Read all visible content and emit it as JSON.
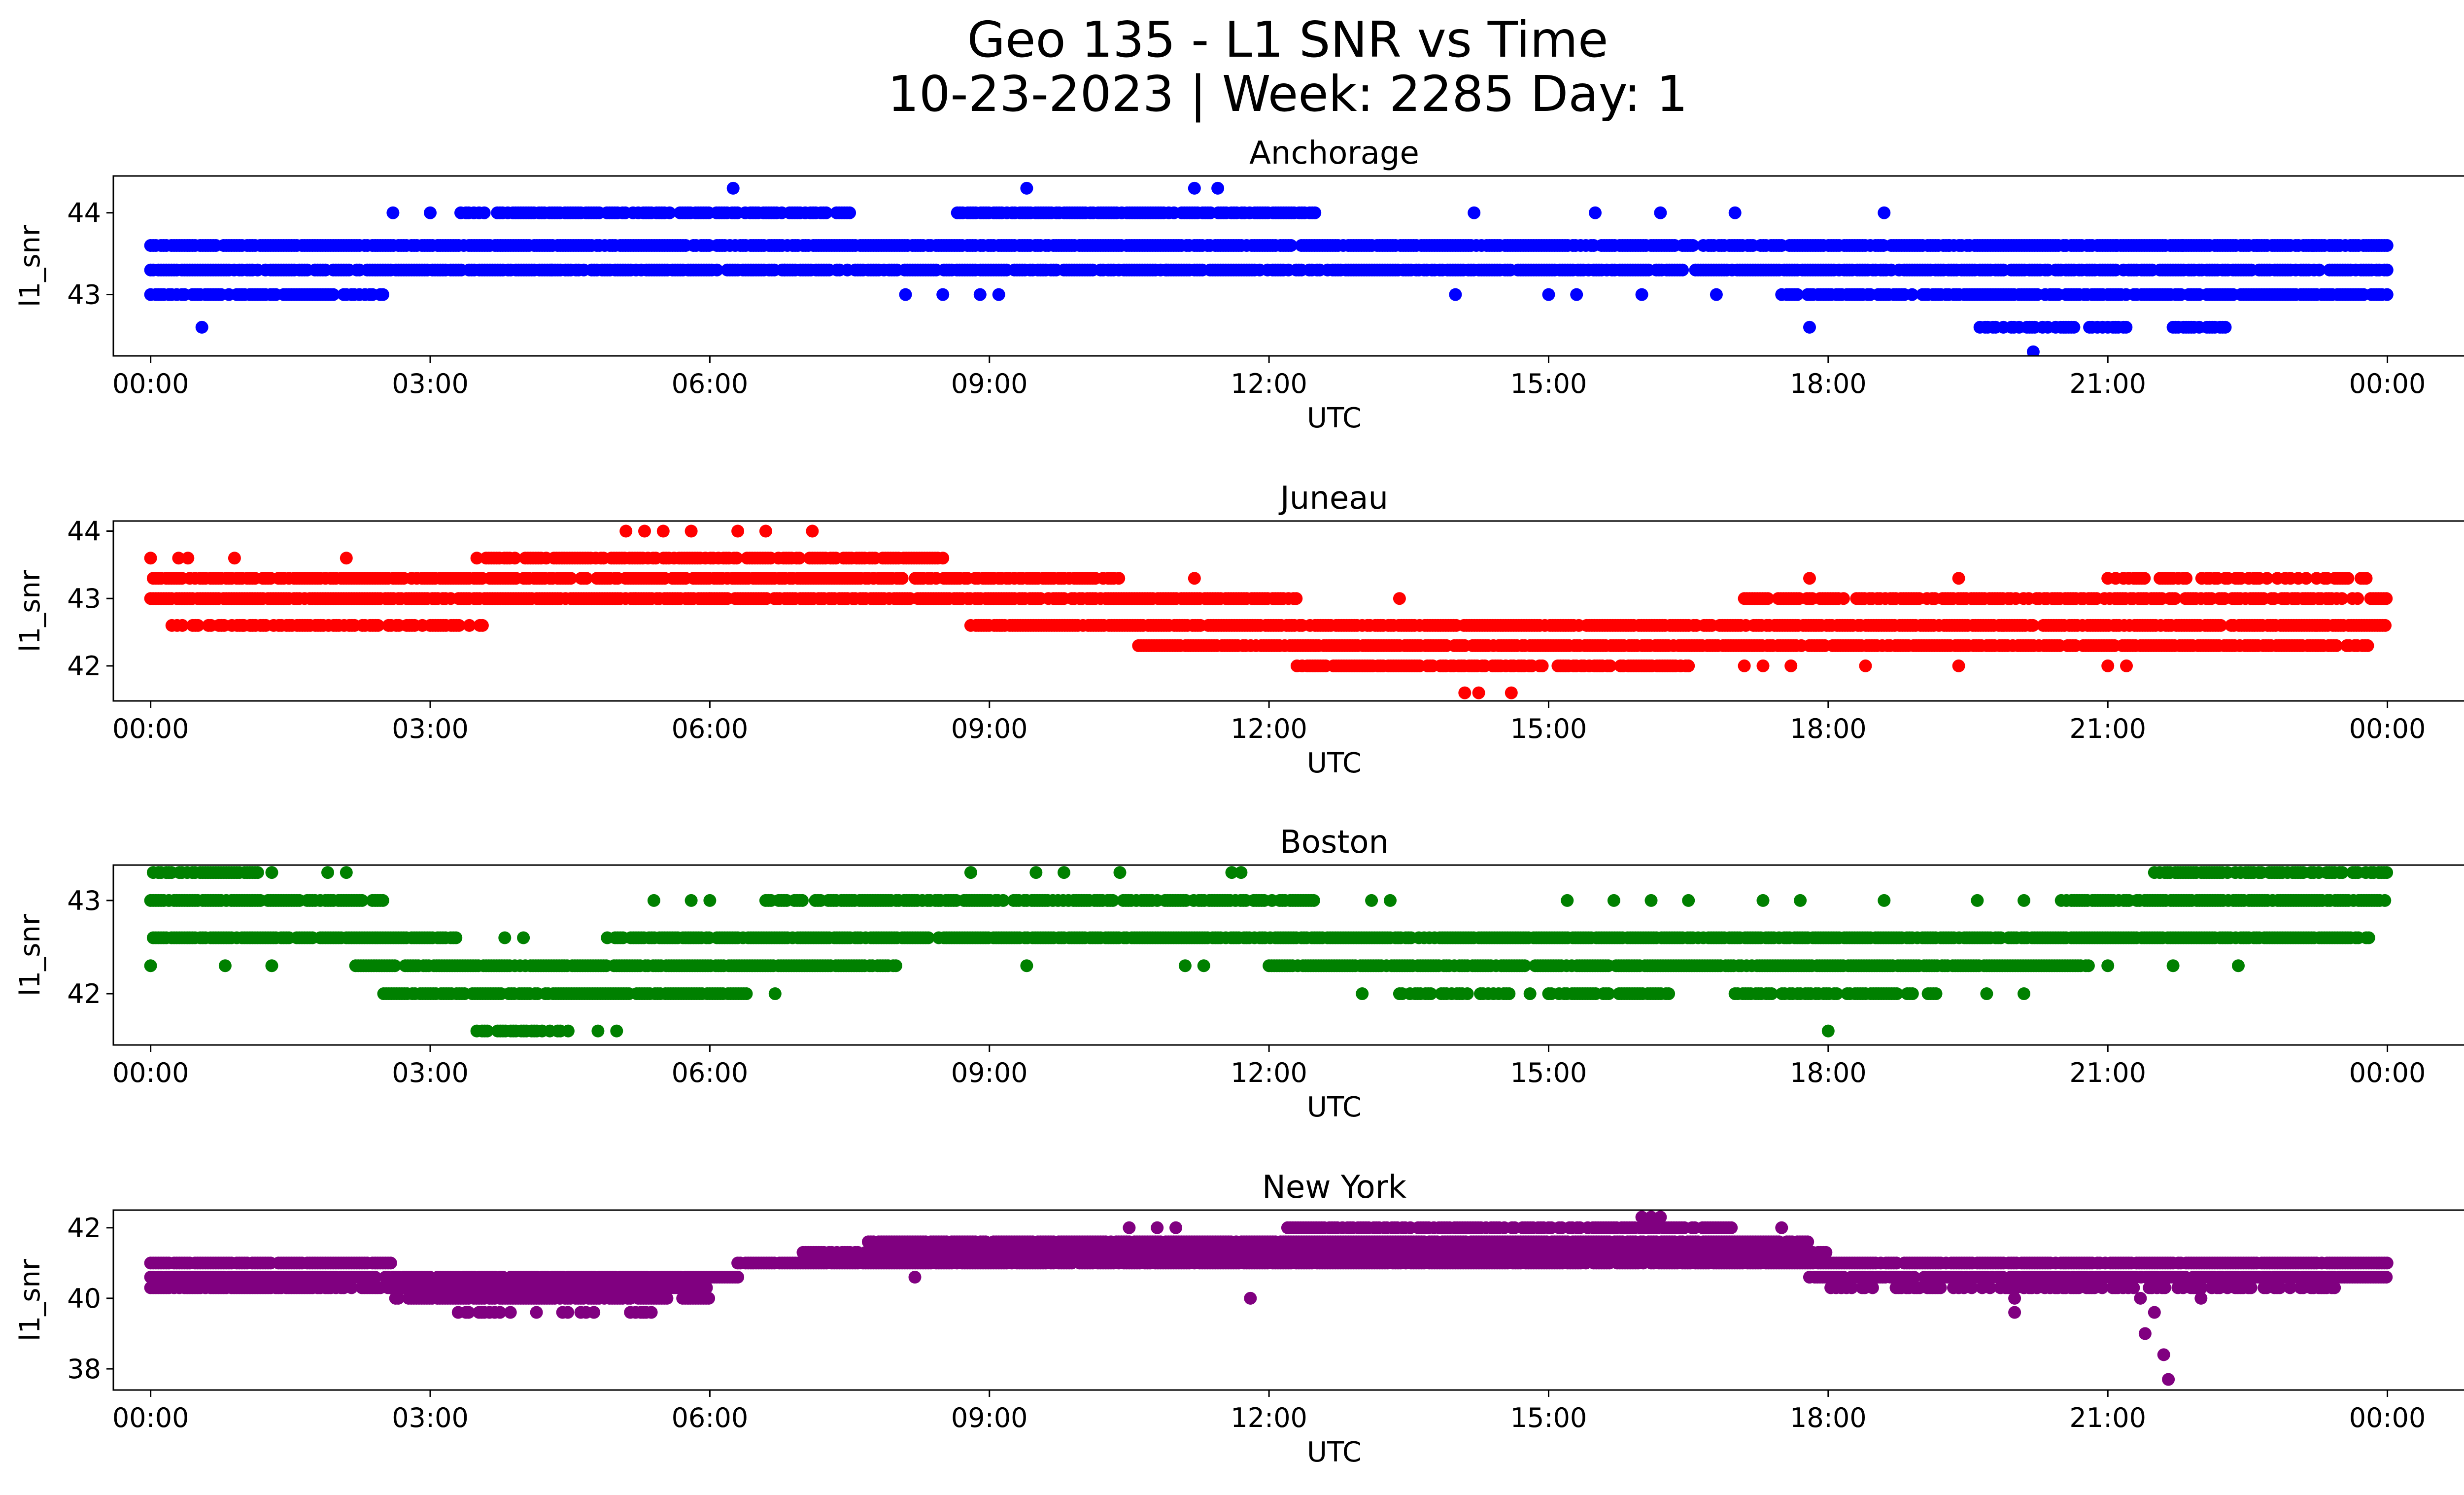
{
  "figure": {
    "title_line1": "Geo 135 - L1 SNR vs Time",
    "title_line2": "10-23-2023 | Week: 2285 Day: 1"
  },
  "chart_data": [
    {
      "type": "scatter",
      "title": "Anchorage",
      "xlabel": "UTC",
      "ylabel": "l1_snr",
      "color": "#0000ff",
      "xlim": [
        -0.4,
        25.8
      ],
      "ylim": [
        42.25,
        44.45
      ],
      "xticks": [
        "00:00",
        "03:00",
        "06:00",
        "09:00",
        "12:00",
        "15:00",
        "18:00",
        "21:00",
        "00:00"
      ],
      "xtick_values": [
        0,
        3,
        6,
        9,
        12,
        15,
        18,
        21,
        24
      ],
      "yticks": [
        43,
        44
      ],
      "bands": [
        {
          "y": 43.6,
          "from": 0.0,
          "to": 24.0,
          "density": 0.85
        },
        {
          "y": 43.3,
          "from": 0.0,
          "to": 24.0,
          "density": 0.8
        },
        {
          "y": 43.0,
          "from": 0.0,
          "to": 2.5,
          "density": 0.7
        },
        {
          "y": 43.0,
          "from": 17.5,
          "to": 24.0,
          "density": 0.8
        },
        {
          "y": 44.0,
          "from": 3.3,
          "to": 7.5,
          "density": 0.75
        },
        {
          "y": 44.0,
          "from": 8.6,
          "to": 12.5,
          "density": 0.8
        },
        {
          "y": 42.6,
          "from": 19.6,
          "to": 21.2,
          "density": 0.7
        },
        {
          "y": 42.6,
          "from": 21.7,
          "to": 22.3,
          "density": 0.7
        }
      ],
      "points": [
        [
          0.55,
          42.6
        ],
        [
          20.2,
          42.3
        ],
        [
          6.25,
          44.3
        ],
        [
          9.4,
          44.3
        ],
        [
          11.2,
          44.3
        ],
        [
          11.45,
          44.3
        ],
        [
          2.6,
          44.0
        ],
        [
          3.0,
          44.0
        ],
        [
          14.2,
          44.0
        ],
        [
          15.5,
          44.0
        ],
        [
          16.2,
          44.0
        ],
        [
          18.6,
          44.0
        ],
        [
          17.0,
          44.0
        ],
        [
          8.1,
          43.0
        ],
        [
          8.5,
          43.0
        ],
        [
          8.9,
          43.0
        ],
        [
          9.1,
          43.0
        ],
        [
          14.0,
          43.0
        ],
        [
          15.0,
          43.0
        ],
        [
          15.3,
          43.0
        ],
        [
          16.0,
          43.0
        ],
        [
          16.8,
          43.0
        ],
        [
          2.3,
          43.0
        ],
        [
          17.8,
          42.6
        ],
        [
          6.8,
          43.3
        ],
        [
          4.3,
          43.3
        ],
        [
          10.9,
          43.3
        ],
        [
          19.3,
          43.6
        ],
        [
          21.1,
          43.6
        ],
        [
          21.8,
          43.6
        ],
        [
          22.6,
          43.6
        ],
        [
          23.2,
          43.6
        ]
      ]
    },
    {
      "type": "scatter",
      "title": "Juneau",
      "xlabel": "UTC",
      "ylabel": "l1_snr",
      "color": "#ff0000",
      "xlim": [
        -0.4,
        25.8
      ],
      "ylim": [
        41.48,
        44.15
      ],
      "xticks": [
        "00:00",
        "03:00",
        "06:00",
        "09:00",
        "12:00",
        "15:00",
        "18:00",
        "21:00",
        "00:00"
      ],
      "xtick_values": [
        0,
        3,
        6,
        9,
        12,
        15,
        18,
        21,
        24
      ],
      "yticks": [
        42,
        43,
        44
      ],
      "bands": [
        {
          "y": 43.3,
          "from": 0.0,
          "to": 10.4,
          "density": 0.85
        },
        {
          "y": 43.0,
          "from": 0.0,
          "to": 12.3,
          "density": 0.85
        },
        {
          "y": 43.0,
          "from": 17.1,
          "to": 24.0,
          "density": 0.7
        },
        {
          "y": 43.6,
          "from": 3.6,
          "to": 8.5,
          "density": 0.75
        },
        {
          "y": 42.6,
          "from": 0.2,
          "to": 3.6,
          "density": 0.6
        },
        {
          "y": 42.6,
          "from": 8.8,
          "to": 24.0,
          "density": 0.85
        },
        {
          "y": 42.3,
          "from": 10.6,
          "to": 23.8,
          "density": 0.85
        },
        {
          "y": 42.0,
          "from": 12.3,
          "to": 16.5,
          "density": 0.75
        },
        {
          "y": 43.3,
          "from": 21.0,
          "to": 23.8,
          "density": 0.5
        }
      ],
      "points": [
        [
          0.0,
          43.6
        ],
        [
          0.3,
          43.6
        ],
        [
          0.4,
          43.6
        ],
        [
          0.9,
          43.6
        ],
        [
          2.1,
          43.6
        ],
        [
          3.5,
          43.6
        ],
        [
          5.1,
          44.0
        ],
        [
          5.3,
          44.0
        ],
        [
          5.5,
          44.0
        ],
        [
          5.8,
          44.0
        ],
        [
          6.3,
          44.0
        ],
        [
          6.6,
          44.0
        ],
        [
          7.1,
          44.0
        ],
        [
          5.2,
          43.0
        ],
        [
          6.0,
          43.0
        ],
        [
          11.2,
          43.3
        ],
        [
          13.4,
          43.0
        ],
        [
          14.1,
          41.6
        ],
        [
          14.25,
          41.6
        ],
        [
          14.6,
          41.6
        ],
        [
          17.1,
          42.0
        ],
        [
          17.3,
          42.0
        ],
        [
          17.6,
          42.0
        ],
        [
          18.4,
          42.0
        ],
        [
          19.4,
          42.0
        ],
        [
          21.0,
          42.0
        ],
        [
          21.2,
          42.0
        ],
        [
          17.8,
          43.3
        ],
        [
          19.4,
          43.3
        ],
        [
          1.0,
          42.6
        ]
      ]
    },
    {
      "type": "scatter",
      "title": "Boston",
      "xlabel": "UTC",
      "ylabel": "l1_snr",
      "color": "#008000",
      "xlim": [
        -0.4,
        25.8
      ],
      "ylim": [
        41.45,
        43.38
      ],
      "xticks": [
        "00:00",
        "03:00",
        "06:00",
        "09:00",
        "12:00",
        "15:00",
        "18:00",
        "21:00",
        "00:00"
      ],
      "xtick_values": [
        0,
        3,
        6,
        9,
        12,
        15,
        18,
        21,
        24
      ],
      "yticks": [
        42,
        43
      ],
      "bands": [
        {
          "y": 43.3,
          "from": 0.0,
          "to": 1.2,
          "density": 0.8
        },
        {
          "y": 43.3,
          "from": 21.5,
          "to": 24.0,
          "density": 0.7
        },
        {
          "y": 43.0,
          "from": 0.0,
          "to": 2.5,
          "density": 0.85
        },
        {
          "y": 43.0,
          "from": 6.6,
          "to": 12.5,
          "density": 0.75
        },
        {
          "y": 43.0,
          "from": 20.5,
          "to": 24.0,
          "density": 0.8
        },
        {
          "y": 42.6,
          "from": 0.0,
          "to": 3.3,
          "density": 0.85
        },
        {
          "y": 42.6,
          "from": 4.9,
          "to": 23.8,
          "density": 0.9
        },
        {
          "y": 42.3,
          "from": 2.2,
          "to": 8.0,
          "density": 0.85
        },
        {
          "y": 42.3,
          "from": 12.0,
          "to": 20.8,
          "density": 0.85
        },
        {
          "y": 42.0,
          "from": 2.5,
          "to": 6.4,
          "density": 0.85
        },
        {
          "y": 42.0,
          "from": 13.4,
          "to": 14.6,
          "density": 0.7
        },
        {
          "y": 42.0,
          "from": 15.0,
          "to": 16.3,
          "density": 0.6
        },
        {
          "y": 42.0,
          "from": 17.0,
          "to": 19.2,
          "density": 0.6
        },
        {
          "y": 41.6,
          "from": 3.5,
          "to": 4.5,
          "density": 0.6
        }
      ],
      "points": [
        [
          0.0,
          42.3
        ],
        [
          1.3,
          43.3
        ],
        [
          1.9,
          43.3
        ],
        [
          2.1,
          43.3
        ],
        [
          8.8,
          43.3
        ],
        [
          9.5,
          43.3
        ],
        [
          9.8,
          43.3
        ],
        [
          10.4,
          43.3
        ],
        [
          11.6,
          43.3
        ],
        [
          11.7,
          43.3
        ],
        [
          5.4,
          43.0
        ],
        [
          5.8,
          43.0
        ],
        [
          6.0,
          43.0
        ],
        [
          13.1,
          43.0
        ],
        [
          13.3,
          43.0
        ],
        [
          15.2,
          43.0
        ],
        [
          15.7,
          43.0
        ],
        [
          16.1,
          43.0
        ],
        [
          16.5,
          43.0
        ],
        [
          17.3,
          43.0
        ],
        [
          17.7,
          43.0
        ],
        [
          18.6,
          43.0
        ],
        [
          19.6,
          43.0
        ],
        [
          20.1,
          43.0
        ],
        [
          4.0,
          42.6
        ],
        [
          3.8,
          42.6
        ],
        [
          4.8,
          41.6
        ],
        [
          5.0,
          41.6
        ],
        [
          6.7,
          42.0
        ],
        [
          13.0,
          42.0
        ],
        [
          14.8,
          42.0
        ],
        [
          19.7,
          42.0
        ],
        [
          20.1,
          42.0
        ],
        [
          18.0,
          41.6
        ],
        [
          0.8,
          42.3
        ],
        [
          1.3,
          42.3
        ],
        [
          9.4,
          42.3
        ],
        [
          11.1,
          42.3
        ],
        [
          11.3,
          42.3
        ],
        [
          21.0,
          42.3
        ],
        [
          21.7,
          42.3
        ],
        [
          22.4,
          42.3
        ]
      ]
    },
    {
      "type": "scatter",
      "title": "New York",
      "xlabel": "UTC",
      "ylabel": "l1_snr",
      "color": "#800080",
      "xlim": [
        -0.4,
        25.8
      ],
      "ylim": [
        37.4,
        42.5
      ],
      "xticks": [
        "00:00",
        "03:00",
        "06:00",
        "09:00",
        "12:00",
        "15:00",
        "18:00",
        "21:00",
        "00:00"
      ],
      "xtick_values": [
        0,
        3,
        6,
        9,
        12,
        15,
        18,
        21,
        24
      ],
      "yticks": [
        38,
        40,
        42
      ],
      "bands": [
        {
          "y": 41.0,
          "from": 0.0,
          "to": 2.6,
          "density": 0.9
        },
        {
          "y": 40.6,
          "from": 0.0,
          "to": 6.3,
          "density": 0.9
        },
        {
          "y": 40.3,
          "from": 0.0,
          "to": 6.0,
          "density": 0.85
        },
        {
          "y": 40.0,
          "from": 2.6,
          "to": 6.0,
          "density": 0.8
        },
        {
          "y": 41.0,
          "from": 6.3,
          "to": 24.0,
          "density": 0.9
        },
        {
          "y": 41.3,
          "from": 7.0,
          "to": 18.0,
          "density": 0.9
        },
        {
          "y": 41.6,
          "from": 7.7,
          "to": 17.8,
          "density": 0.9
        },
        {
          "y": 42.0,
          "from": 12.2,
          "to": 17.0,
          "density": 0.75
        },
        {
          "y": 40.6,
          "from": 17.8,
          "to": 24.0,
          "density": 0.85
        },
        {
          "y": 40.3,
          "from": 18.0,
          "to": 23.5,
          "density": 0.5
        },
        {
          "y": 39.6,
          "from": 3.3,
          "to": 5.4,
          "density": 0.3
        }
      ],
      "points": [
        [
          16.0,
          42.3
        ],
        [
          16.1,
          42.3
        ],
        [
          16.2,
          42.3
        ],
        [
          11.8,
          40.0
        ],
        [
          8.2,
          40.6
        ],
        [
          10.5,
          42.0
        ],
        [
          10.8,
          42.0
        ],
        [
          11.0,
          42.0
        ],
        [
          17.5,
          42.0
        ],
        [
          20.0,
          39.6
        ],
        [
          20.0,
          40.0
        ],
        [
          21.4,
          39.0
        ],
        [
          21.5,
          39.6
        ],
        [
          21.6,
          38.4
        ],
        [
          21.65,
          37.7
        ],
        [
          21.35,
          40.0
        ],
        [
          22.0,
          40.0
        ],
        [
          17.8,
          40.6
        ],
        [
          18.1,
          40.6
        ]
      ]
    }
  ]
}
